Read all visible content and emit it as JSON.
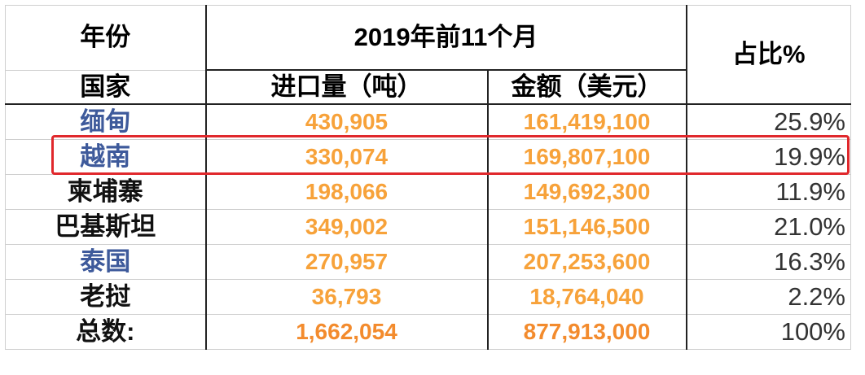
{
  "header": {
    "year_label": "年份",
    "period_label": "2019年前11个月",
    "share_label": "占比%",
    "country_label": "国家",
    "volume_label": "进口量（吨）",
    "amount_label": "金额（美元）"
  },
  "rows": [
    {
      "country": "缅甸",
      "volume": "430,905",
      "amount": "161,419,100",
      "share": "25.9%"
    },
    {
      "country": "越南",
      "volume": "330,074",
      "amount": "169,807,100",
      "share": "19.9%"
    },
    {
      "country": "柬埔寨",
      "volume": "198,066",
      "amount": "149,692,300",
      "share": "11.9%"
    },
    {
      "country": "巴基斯坦",
      "volume": "349,002",
      "amount": "151,146,500",
      "share": "21.0%"
    },
    {
      "country": "泰国",
      "volume": "270,957",
      "amount": "207,253,600",
      "share": "16.3%"
    },
    {
      "country": "老挝",
      "volume": "36,793",
      "amount": "18,764,040",
      "share": "2.2%"
    }
  ],
  "total": {
    "label": "总数:",
    "volume": "1,662,054",
    "amount": "877,913,000",
    "share": "100%"
  },
  "colors": {
    "country_blue": "#3e5a9b",
    "number_orange": "#f7a23a",
    "highlight_red": "#e0282c"
  }
}
